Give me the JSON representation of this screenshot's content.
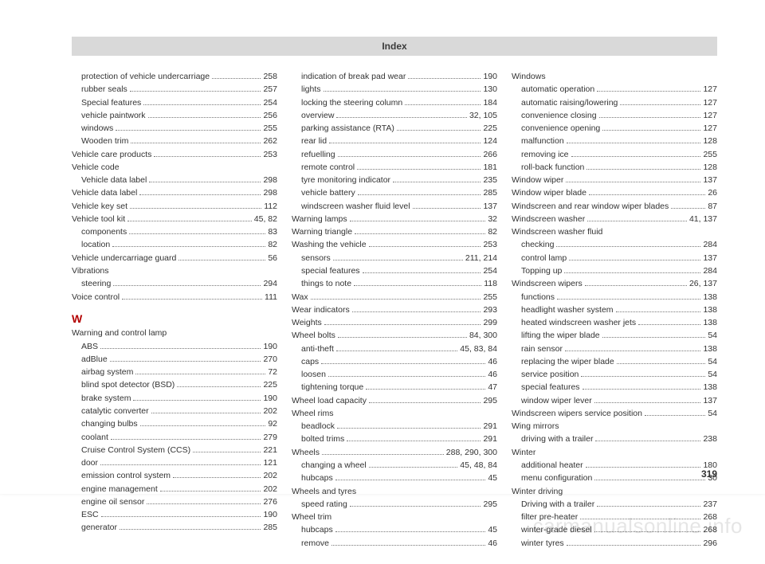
{
  "header": {
    "title": "Index"
  },
  "page_number": "319",
  "watermark": "carmanualsonline.info",
  "section_letter": "W",
  "columns": [
    [
      {
        "type": "entry",
        "sub": true,
        "label": "protection of vehicle undercarriage",
        "page": "258"
      },
      {
        "type": "entry",
        "sub": true,
        "label": "rubber seals",
        "page": "257"
      },
      {
        "type": "entry",
        "sub": true,
        "label": "Special features",
        "page": "254"
      },
      {
        "type": "entry",
        "sub": true,
        "label": "vehicle paintwork",
        "page": "256"
      },
      {
        "type": "entry",
        "sub": true,
        "label": "windows",
        "page": "255"
      },
      {
        "type": "entry",
        "sub": true,
        "label": "Wooden trim",
        "page": "262"
      },
      {
        "type": "entry",
        "label": "Vehicle care products",
        "page": "253"
      },
      {
        "type": "heading",
        "label": "Vehicle code"
      },
      {
        "type": "entry",
        "sub": true,
        "label": "Vehicle data label",
        "page": "298"
      },
      {
        "type": "entry",
        "label": "Vehicle data label",
        "page": "298"
      },
      {
        "type": "entry",
        "label": "Vehicle key set",
        "page": "112"
      },
      {
        "type": "entry",
        "label": "Vehicle tool kit",
        "page": "45, 82"
      },
      {
        "type": "entry",
        "sub": true,
        "label": "components",
        "page": "83"
      },
      {
        "type": "entry",
        "sub": true,
        "label": "location",
        "page": "82"
      },
      {
        "type": "entry",
        "label": "Vehicle undercarriage guard",
        "page": "56"
      },
      {
        "type": "heading",
        "label": "Vibrations"
      },
      {
        "type": "entry",
        "sub": true,
        "label": "steering",
        "page": "294"
      },
      {
        "type": "entry",
        "label": "Voice control",
        "page": "111"
      },
      {
        "type": "section"
      },
      {
        "type": "heading",
        "label": "Warning and control lamp"
      },
      {
        "type": "entry",
        "sub": true,
        "label": "ABS",
        "page": "190"
      },
      {
        "type": "entry",
        "sub": true,
        "label": "adBlue",
        "page": "270"
      },
      {
        "type": "entry",
        "sub": true,
        "label": "airbag system",
        "page": "72"
      },
      {
        "type": "entry",
        "sub": true,
        "label": "blind spot detector (BSD)",
        "page": "225"
      },
      {
        "type": "entry",
        "sub": true,
        "label": "brake system",
        "page": "190"
      },
      {
        "type": "entry",
        "sub": true,
        "label": "catalytic converter",
        "page": "202"
      },
      {
        "type": "entry",
        "sub": true,
        "label": "changing bulbs",
        "page": "92"
      },
      {
        "type": "entry",
        "sub": true,
        "label": "coolant",
        "page": "279"
      },
      {
        "type": "entry",
        "sub": true,
        "label": "Cruise Control System (CCS)",
        "page": "221"
      },
      {
        "type": "entry",
        "sub": true,
        "label": "door",
        "page": "121"
      },
      {
        "type": "entry",
        "sub": true,
        "label": "emission control system",
        "page": "202"
      },
      {
        "type": "entry",
        "sub": true,
        "label": "engine management",
        "page": "202"
      },
      {
        "type": "entry",
        "sub": true,
        "label": "engine oil sensor",
        "page": "276"
      },
      {
        "type": "entry",
        "sub": true,
        "label": "ESC",
        "page": "190"
      },
      {
        "type": "entry",
        "sub": true,
        "label": "generator",
        "page": "285"
      }
    ],
    [
      {
        "type": "entry",
        "sub": true,
        "label": "indication of break pad wear",
        "page": "190"
      },
      {
        "type": "entry",
        "sub": true,
        "label": "lights",
        "page": "130"
      },
      {
        "type": "entry",
        "sub": true,
        "label": "locking the steering column",
        "page": "184"
      },
      {
        "type": "entry",
        "sub": true,
        "label": "overview",
        "page": "32, 105"
      },
      {
        "type": "entry",
        "sub": true,
        "label": "parking assistance (RTA)",
        "page": "225"
      },
      {
        "type": "entry",
        "sub": true,
        "label": "rear lid",
        "page": "124"
      },
      {
        "type": "entry",
        "sub": true,
        "label": "refuelling",
        "page": "266"
      },
      {
        "type": "entry",
        "sub": true,
        "label": "remote control",
        "page": "181"
      },
      {
        "type": "entry",
        "sub": true,
        "label": "tyre monitoring indicator",
        "page": "235"
      },
      {
        "type": "entry",
        "sub": true,
        "label": "vehicle battery",
        "page": "285"
      },
      {
        "type": "entry",
        "sub": true,
        "label": "windscreen washer fluid level",
        "page": "137"
      },
      {
        "type": "entry",
        "label": "Warning lamps",
        "page": "32"
      },
      {
        "type": "entry",
        "label": "Warning triangle",
        "page": "82"
      },
      {
        "type": "entry",
        "label": "Washing the vehicle",
        "page": "253"
      },
      {
        "type": "entry",
        "sub": true,
        "label": "sensors",
        "page": "211, 214"
      },
      {
        "type": "entry",
        "sub": true,
        "label": "special features",
        "page": "254"
      },
      {
        "type": "entry",
        "sub": true,
        "label": "things to note",
        "page": "118"
      },
      {
        "type": "entry",
        "label": "Wax",
        "page": "255"
      },
      {
        "type": "entry",
        "label": "Wear indicators",
        "page": "293"
      },
      {
        "type": "entry",
        "label": "Weights",
        "page": "299"
      },
      {
        "type": "entry",
        "label": "Wheel bolts",
        "page": "84, 300"
      },
      {
        "type": "entry",
        "sub": true,
        "label": "anti-theft",
        "page": "45, 83, 84"
      },
      {
        "type": "entry",
        "sub": true,
        "label": "caps",
        "page": "46"
      },
      {
        "type": "entry",
        "sub": true,
        "label": "loosen",
        "page": "46"
      },
      {
        "type": "entry",
        "sub": true,
        "label": "tightening torque",
        "page": "47"
      },
      {
        "type": "entry",
        "label": "Wheel load capacity",
        "page": "295"
      },
      {
        "type": "heading",
        "label": "Wheel rims"
      },
      {
        "type": "entry",
        "sub": true,
        "label": "beadlock",
        "page": "291"
      },
      {
        "type": "entry",
        "sub": true,
        "label": "bolted trims",
        "page": "291"
      },
      {
        "type": "entry",
        "label": "Wheels",
        "page": "288, 290, 300"
      },
      {
        "type": "entry",
        "sub": true,
        "label": "changing a wheel",
        "page": "45, 48, 84"
      },
      {
        "type": "entry",
        "sub": true,
        "label": "hubcaps",
        "page": "45"
      },
      {
        "type": "heading",
        "label": "Wheels and tyres"
      },
      {
        "type": "entry",
        "sub": true,
        "label": "speed rating",
        "page": "295"
      },
      {
        "type": "heading",
        "label": "Wheel trim"
      },
      {
        "type": "entry",
        "sub": true,
        "label": "hubcaps",
        "page": "45"
      },
      {
        "type": "entry",
        "sub": true,
        "label": "remove",
        "page": "46"
      }
    ],
    [
      {
        "type": "heading",
        "label": "Windows"
      },
      {
        "type": "entry",
        "sub": true,
        "label": "automatic operation",
        "page": "127"
      },
      {
        "type": "entry",
        "sub": true,
        "label": "automatic raising/lowering",
        "page": "127"
      },
      {
        "type": "entry",
        "sub": true,
        "label": "convenience closing",
        "page": "127"
      },
      {
        "type": "entry",
        "sub": true,
        "label": "convenience opening",
        "page": "127"
      },
      {
        "type": "entry",
        "sub": true,
        "label": "malfunction",
        "page": "128"
      },
      {
        "type": "entry",
        "sub": true,
        "label": "removing ice",
        "page": "255"
      },
      {
        "type": "entry",
        "sub": true,
        "label": "roll-back function",
        "page": "128"
      },
      {
        "type": "entry",
        "label": "Window wiper",
        "page": "137"
      },
      {
        "type": "entry",
        "label": "Window wiper blade",
        "page": "26"
      },
      {
        "type": "entry",
        "label": "Windscreen and rear window wiper blades",
        "page": "87"
      },
      {
        "type": "entry",
        "label": "Windscreen washer",
        "page": "41, 137"
      },
      {
        "type": "heading",
        "label": "Windscreen washer fluid"
      },
      {
        "type": "entry",
        "sub": true,
        "label": "checking",
        "page": "284"
      },
      {
        "type": "entry",
        "sub": true,
        "label": "control lamp",
        "page": "137"
      },
      {
        "type": "entry",
        "sub": true,
        "label": "Topping up",
        "page": "284"
      },
      {
        "type": "entry",
        "label": "Windscreen wipers",
        "page": "26, 137"
      },
      {
        "type": "entry",
        "sub": true,
        "label": "functions",
        "page": "138"
      },
      {
        "type": "entry",
        "sub": true,
        "label": "headlight washer system",
        "page": "138"
      },
      {
        "type": "entry",
        "sub": true,
        "label": "heated windscreen washer jets",
        "page": "138"
      },
      {
        "type": "entry",
        "sub": true,
        "label": "lifting the wiper blade",
        "page": "54"
      },
      {
        "type": "entry",
        "sub": true,
        "label": "rain sensor",
        "page": "138"
      },
      {
        "type": "entry",
        "sub": true,
        "label": "replacing the wiper blade",
        "page": "54"
      },
      {
        "type": "entry",
        "sub": true,
        "label": "service position",
        "page": "54"
      },
      {
        "type": "entry",
        "sub": true,
        "label": "special features",
        "page": "138"
      },
      {
        "type": "entry",
        "sub": true,
        "label": "window wiper lever",
        "page": "137"
      },
      {
        "type": "entry",
        "label": "Windscreen wipers service position",
        "page": "54"
      },
      {
        "type": "heading",
        "label": "Wing mirrors"
      },
      {
        "type": "entry",
        "sub": true,
        "label": "driving with a trailer",
        "page": "238"
      },
      {
        "type": "heading",
        "label": "Winter"
      },
      {
        "type": "entry",
        "sub": true,
        "label": "additional heater",
        "page": "180"
      },
      {
        "type": "entry",
        "sub": true,
        "label": "menu configuration",
        "page": "30"
      },
      {
        "type": "heading",
        "label": "Winter driving"
      },
      {
        "type": "entry",
        "sub": true,
        "label": "Driving with a trailer",
        "page": "237"
      },
      {
        "type": "entry",
        "sub": true,
        "label": "filter pre-heater",
        "page": "268"
      },
      {
        "type": "entry",
        "sub": true,
        "label": "winter-grade diesel",
        "page": "268"
      },
      {
        "type": "entry",
        "sub": true,
        "label": "winter tyres",
        "page": "296"
      }
    ]
  ]
}
